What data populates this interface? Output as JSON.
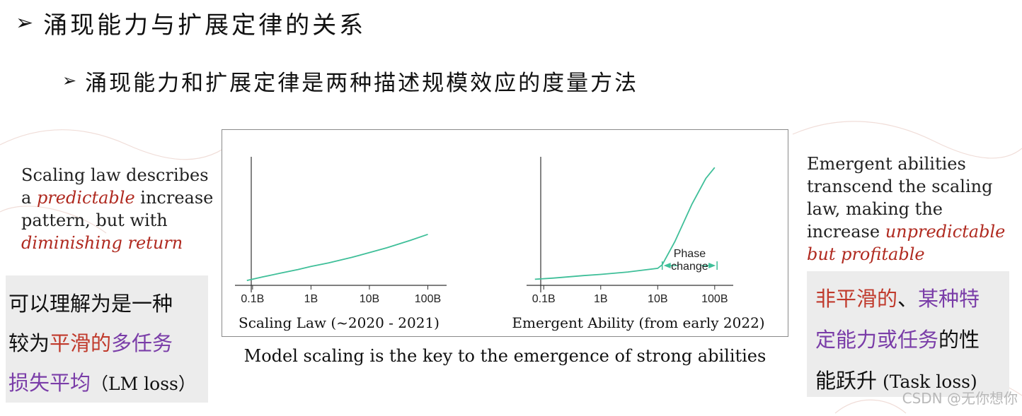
{
  "slide": {
    "title": "涌现能力与扩展定律的关系",
    "subtitle": "涌现能力和扩展定律是两种描述规模效应的度量方法",
    "bullet_glyph": "➢"
  },
  "left_note": {
    "line1": "Scaling law describes",
    "line2_pre": "a ",
    "line2_em": "predictable",
    "line2_post": " increase",
    "line3": "pattern, but with",
    "line4_em": "diminishing return"
  },
  "right_note": {
    "line1": "Emergent abilities",
    "line2": "transcend the scaling",
    "line3": "law, making the",
    "line4_pre": "increase ",
    "line4_em": "unpredictable",
    "line5_em": "but profitable"
  },
  "left_box": {
    "line1": "可以理解为是一种",
    "line2_a": "较为",
    "line2_b": "平滑的",
    "line2_c": "多任务",
    "line3_a": "损失平均",
    "line3_b": "（LM loss）"
  },
  "right_box": {
    "line1_a": "非平滑的",
    "line1_b": "、",
    "line1_c": "某种特",
    "line2_a": "定能力或任务",
    "line2_b": "的性",
    "line3_a": "能跃升",
    "line3_b": "  (Task loss)"
  },
  "caption": "Model scaling is the key to the emergence of strong abilities",
  "watermark": "CSDN @无你想你",
  "colors": {
    "line": "#3fbf99",
    "red": "#b02a20",
    "purple": "#7a3da8"
  },
  "chart_data": [
    {
      "type": "line",
      "title": "Scaling Law (~2020 - 2021)",
      "x_scale": "log",
      "x_ticks": [
        0.1,
        1,
        10,
        100
      ],
      "x_tick_labels": [
        "0.1B",
        "1B",
        "10B",
        "100B"
      ],
      "xlim": [
        0.05,
        150
      ],
      "ylim": [
        0,
        1
      ],
      "x": [
        0.08,
        0.15,
        0.3,
        0.6,
        1,
        2,
        5,
        10,
        20,
        50,
        100
      ],
      "y": [
        0.04,
        0.07,
        0.1,
        0.13,
        0.155,
        0.185,
        0.23,
        0.27,
        0.31,
        0.37,
        0.42
      ],
      "grid": false
    },
    {
      "type": "line",
      "title": "Emergent Ability (from early 2022)",
      "x_scale": "log",
      "x_ticks": [
        0.1,
        1,
        10,
        100
      ],
      "x_tick_labels": [
        "0.1B",
        "1B",
        "10B",
        "100B"
      ],
      "xlim": [
        0.05,
        150
      ],
      "ylim": [
        0,
        1
      ],
      "x": [
        0.07,
        0.15,
        0.5,
        1,
        3,
        10,
        12,
        20,
        40,
        70,
        100
      ],
      "y": [
        0.05,
        0.06,
        0.08,
        0.09,
        0.11,
        0.14,
        0.17,
        0.36,
        0.67,
        0.88,
        0.97
      ],
      "annotation": {
        "line1": "Phase",
        "line2": "change",
        "x_from": 12,
        "x_to": 110
      },
      "grid": false
    }
  ]
}
